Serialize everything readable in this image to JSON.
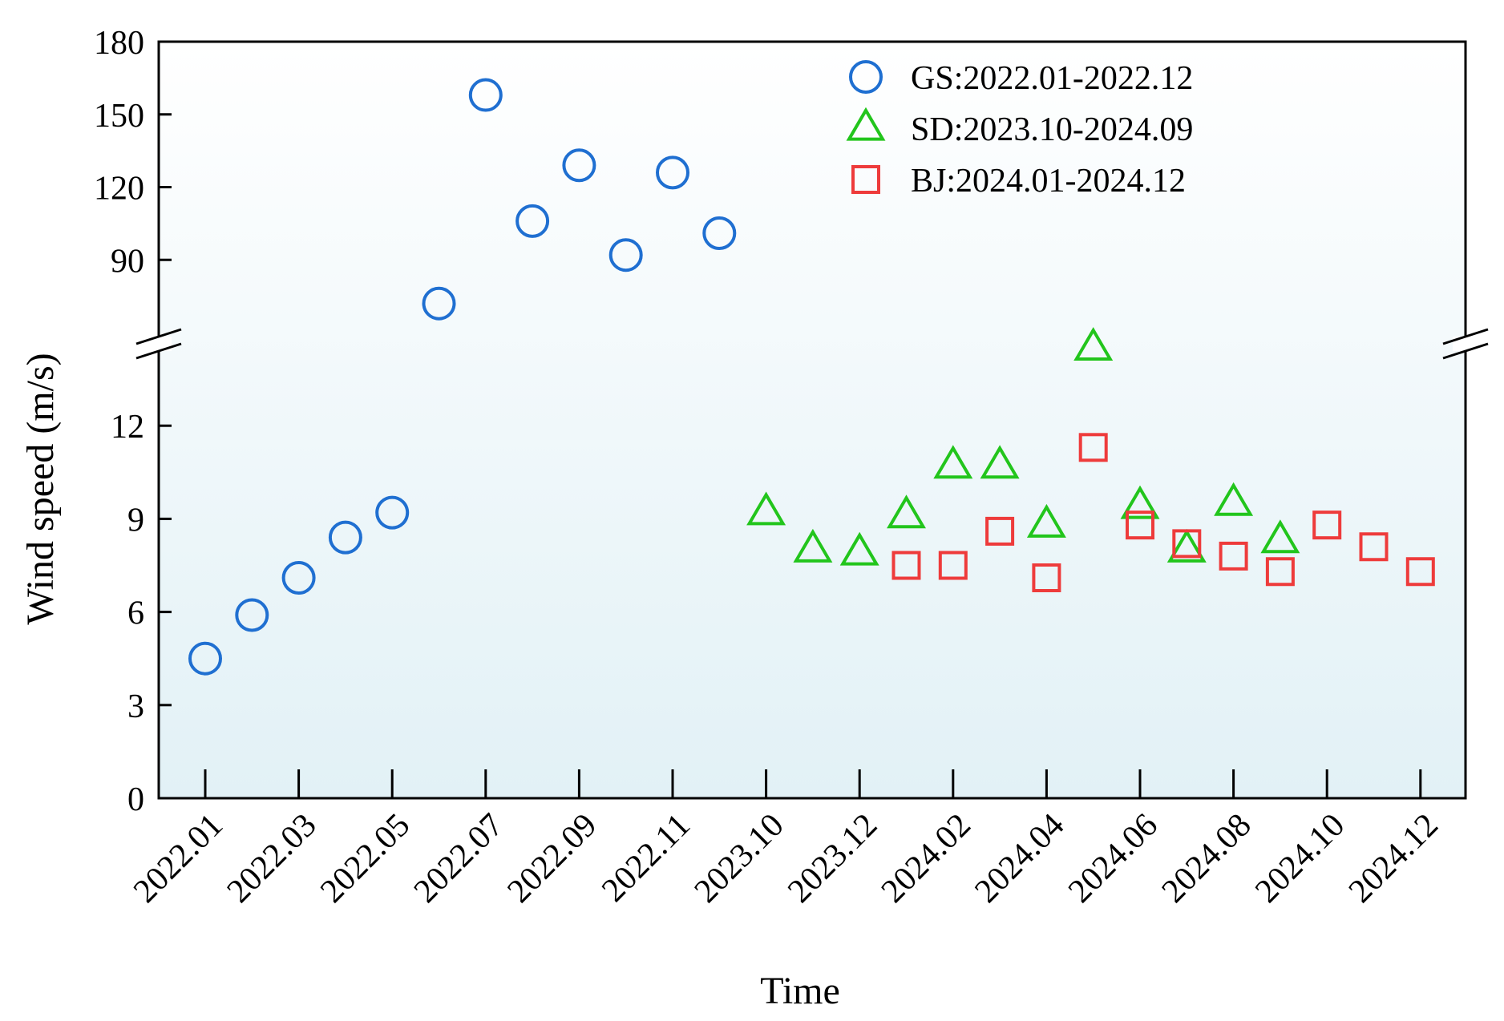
{
  "chart_data": {
    "type": "scatter",
    "xlabel": "Time",
    "ylabel": "Wind speed (m/s)",
    "y_axis_break": {
      "lower_range": [
        0,
        15
      ],
      "upper_range": [
        60,
        180
      ],
      "lower_ticks": [
        "0",
        "3",
        "6",
        "9",
        "12"
      ],
      "upper_ticks": [
        "90",
        "120",
        "150",
        "180"
      ]
    },
    "x_ticks": [
      "2022.01",
      "2022.03",
      "2022.05",
      "2022.07",
      "2022.09",
      "2022.11",
      "2023.10",
      "2023.12",
      "2024.02",
      "2024.04",
      "2024.06",
      "2024.08",
      "2024.10",
      "2024.12"
    ],
    "legend_position": "top-right",
    "series": [
      {
        "name": "GS:2022.01-2022.12",
        "marker": "circle",
        "color": "#1f6fd1",
        "x": [
          0,
          1,
          2,
          3,
          4,
          5,
          6,
          7,
          8,
          9,
          10,
          11
        ],
        "y": [
          4.5,
          5.9,
          7.1,
          8.4,
          9.2,
          72,
          158,
          106,
          129,
          92,
          126,
          101
        ]
      },
      {
        "name": "SD:2023.10-2024.09",
        "marker": "triangle",
        "color": "#22c51c",
        "x": [
          12,
          13,
          14,
          15,
          16,
          17,
          18,
          19,
          20,
          21,
          22,
          23
        ],
        "y": [
          9.2,
          8.0,
          7.9,
          9.1,
          10.7,
          10.7,
          8.8,
          14.5,
          9.4,
          8.0,
          9.5,
          8.3
        ]
      },
      {
        "name": "BJ:2024.01-2024.12",
        "marker": "square",
        "color": "#ee3b3b",
        "x": [
          15,
          16,
          17,
          18,
          19,
          20,
          21,
          22,
          23,
          24,
          25,
          26
        ],
        "y": [
          7.5,
          7.5,
          8.6,
          7.1,
          11.3,
          8.8,
          8.2,
          7.8,
          7.3,
          8.8,
          8.1,
          7.3
        ]
      }
    ]
  }
}
